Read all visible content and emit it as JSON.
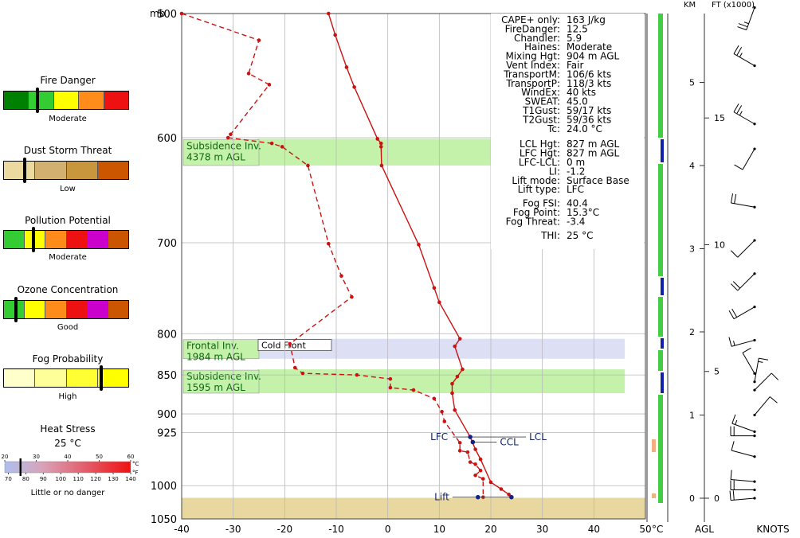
{
  "legend": {
    "fire": {
      "title": "Fire Danger",
      "level": "Moderate",
      "colors": [
        "#008000",
        "#33cc33",
        "#ffff00",
        "#ff8c1a",
        "#ee1111"
      ],
      "marker_fraction": 0.27
    },
    "dust": {
      "title": "Dust Storm Threat",
      "level": "Low",
      "colors": [
        "#ecd9a0",
        "#d2b070",
        "#c8963c",
        "#cc5500"
      ],
      "marker_fraction": 0.17
    },
    "pollution": {
      "title": "Pollution Potential",
      "level": "Moderate",
      "colors": [
        "#33cc33",
        "#ffff00",
        "#ff8c1a",
        "#ee1111",
        "#cc00cc",
        "#cc5500"
      ],
      "marker_fraction": 0.24
    },
    "ozone": {
      "title": "Ozone Concentration",
      "level": "Good",
      "colors": [
        "#33cc33",
        "#ffff00",
        "#ff8c1a",
        "#ee1111",
        "#cc00cc",
        "#cc5500"
      ],
      "marker_fraction": 0.1
    },
    "fog": {
      "title": "Fog Probability",
      "level": "High",
      "colors": [
        "#ffffcc",
        "#ffff99",
        "#ffff33",
        "#ffff00"
      ],
      "marker_fraction": 0.78
    },
    "heat": {
      "title": "Heat Stress",
      "value": "25 °C",
      "danger": "Little or no danger",
      "c_ticks": [
        "20",
        "30",
        "40",
        "50",
        "60"
      ],
      "c_unit": "°C",
      "f_ticks": [
        "70",
        "80",
        "90",
        "100",
        "110",
        "120",
        "130",
        "140"
      ],
      "f_unit": "°F",
      "marker_c": 25
    }
  },
  "chart_data": {
    "type": "line",
    "pressure_label": "mb",
    "temp_unit_label": "°C",
    "agl_label": "AGL",
    "knots_label": "KNOTS",
    "km_label": "KM",
    "ft_label": "FT (x1000)",
    "x_ticks": [
      -40,
      -30,
      -20,
      -10,
      0,
      10,
      20,
      30,
      40,
      50
    ],
    "xlim": [
      -40,
      50
    ],
    "y_ticks": [
      500,
      600,
      700,
      800,
      850,
      900,
      925,
      1000,
      1050
    ],
    "ylim": [
      500,
      1050
    ],
    "series": [
      {
        "color": "#cc1111",
        "style": "solid",
        "points": [
          [
            -11.5,
            500
          ],
          [
            -10.2,
            516
          ],
          [
            -8,
            541
          ],
          [
            -6.5,
            557
          ],
          [
            -2,
            601
          ],
          [
            -1.3,
            605
          ],
          [
            -1.3,
            608
          ],
          [
            -1.2,
            625
          ],
          [
            6,
            702
          ],
          [
            9,
            748
          ],
          [
            10,
            764
          ],
          [
            14,
            806
          ],
          [
            13,
            815
          ],
          [
            14.5,
            843
          ],
          [
            13.5,
            852
          ],
          [
            12.5,
            861
          ],
          [
            12.5,
            873
          ],
          [
            13,
            895
          ],
          [
            16,
            931
          ],
          [
            17,
            948
          ],
          [
            18,
            962
          ],
          [
            20,
            995
          ],
          [
            22,
            1005
          ],
          [
            23.5,
            1013
          ],
          [
            24,
            1017
          ]
        ]
      },
      {
        "color": "#cc1111",
        "style": "dashed",
        "points": [
          [
            -40,
            500
          ],
          [
            -25,
            520
          ],
          [
            -27,
            546
          ],
          [
            -23,
            555
          ],
          [
            -30.5,
            597
          ],
          [
            -31,
            600
          ],
          [
            -22.5,
            605
          ],
          [
            -20.5,
            608
          ],
          [
            -15.5,
            625
          ],
          [
            -11.5,
            701
          ],
          [
            -9,
            735
          ],
          [
            -7,
            758
          ],
          [
            -19,
            812
          ],
          [
            -18,
            841
          ],
          [
            -16.5,
            848
          ],
          [
            -6,
            850
          ],
          [
            0.5,
            855
          ],
          [
            0.5,
            866
          ],
          [
            5,
            869
          ],
          [
            9,
            880
          ],
          [
            10.5,
            897
          ],
          [
            11,
            910
          ],
          [
            14,
            939
          ],
          [
            14,
            950
          ],
          [
            15.5,
            952
          ],
          [
            16,
            966
          ],
          [
            17,
            969
          ],
          [
            18,
            978
          ],
          [
            17,
            985
          ],
          [
            18.5,
            990
          ],
          [
            18.5,
            1017
          ]
        ]
      }
    ],
    "parcel_points": [
      {
        "label": "LFC",
        "t": 16,
        "p": 931
      },
      {
        "label": "LCL",
        "t": 16,
        "p": 931
      },
      {
        "label": "CCL",
        "t": 16.5,
        "p": 938
      },
      {
        "label": "Lift",
        "t": 17.5,
        "p": 1017
      }
    ],
    "layers": [
      {
        "type": "subsidence",
        "name": "Subsidence Inv.",
        "height": "4378 m AGL",
        "p_top": 601,
        "p_bottom": 625,
        "t_right": 20,
        "color": "#c4f2aa"
      },
      {
        "type": "frontal",
        "name": "Frontal Inv.",
        "height": "1984 m AGL",
        "p_top": 806,
        "p_bottom": 830,
        "t_right": 46,
        "color": "#dde0f5"
      },
      {
        "type": "subsidence",
        "name": "Subsidence Inv.",
        "height": "1595 m AGL",
        "p_top": 843,
        "p_bottom": 873,
        "t_right": 46,
        "color": "#c4f2aa"
      }
    ],
    "front_label": "Cold Front",
    "ground": {
      "p_top": 1018,
      "color": "#e8d8a0"
    },
    "indices": [
      {
        "label": "CAPE+ only:",
        "value": "163 J/kg"
      },
      {
        "label": "FireDanger:",
        "value": "12.5"
      },
      {
        "label": "Chandler:",
        "value": "5.9"
      },
      {
        "label": "Haines:",
        "value": "Moderate"
      },
      {
        "label": "Mixing Hgt:",
        "value": "904 m AGL"
      },
      {
        "label": "Vent Index:",
        "value": "Fair"
      },
      {
        "label": "TransportM:",
        "value": "106/6 kts"
      },
      {
        "label": "TransportP:",
        "value": "118/3 kts"
      },
      {
        "label": "WindEx:",
        "value": "40 kts"
      },
      {
        "label": "SWEAT:",
        "value": "45.0"
      },
      {
        "label": "T1Gust:",
        "value": "59/17 kts"
      },
      {
        "label": "T2Gust:",
        "value": "59/36 kts"
      },
      {
        "label": "Tc:",
        "value": "24.0 °C"
      },
      {
        "label": "LCL Hgt:",
        "value": "827 m AGL"
      },
      {
        "label": "LFC Hgt:",
        "value": "827 m AGL"
      },
      {
        "label": "LFC-LCL:",
        "value": "0 m"
      },
      {
        "label": "LI:",
        "value": "-1.2"
      },
      {
        "label": "Lift mode:",
        "value": "Surface Base"
      },
      {
        "label": "Lift type:",
        "value": "LFC"
      },
      {
        "label": "Fog FSI:",
        "value": "40.4"
      },
      {
        "label": "Fog Point:",
        "value": "15.3°C"
      },
      {
        "label": "Fog Threat:",
        "value": "-3.4"
      },
      {
        "label": "THI:",
        "value": "25 °C"
      }
    ],
    "km_ticks": [
      "0",
      "1",
      "2",
      "3",
      "4",
      "5"
    ],
    "ft_ticks": [
      "0",
      "5",
      "10",
      "15"
    ],
    "wind_barbs": [
      {
        "height_km": 5.9,
        "dir_deg": 200,
        "speed_kt": 25
      },
      {
        "height_km": 5.2,
        "dir_deg": 300,
        "speed_kt": 25
      },
      {
        "height_km": 4.5,
        "dir_deg": 300,
        "speed_kt": 25
      },
      {
        "height_km": 4.2,
        "dir_deg": 210,
        "speed_kt": 10
      },
      {
        "height_km": 3.5,
        "dir_deg": 280,
        "speed_kt": 20
      },
      {
        "height_km": 3.1,
        "dir_deg": 225,
        "speed_kt": 10
      },
      {
        "height_km": 2.7,
        "dir_deg": 225,
        "speed_kt": 20
      },
      {
        "height_km": 2.3,
        "dir_deg": 240,
        "speed_kt": 20
      },
      {
        "height_km": 1.9,
        "dir_deg": 255,
        "speed_kt": 15
      },
      {
        "height_km": 1.5,
        "dir_deg": 330,
        "speed_kt": 10
      },
      {
        "height_km": 1.4,
        "dir_deg": 10,
        "speed_kt": 15
      },
      {
        "height_km": 1.3,
        "dir_deg": 45,
        "speed_kt": 10
      },
      {
        "height_km": 1.0,
        "dir_deg": 40,
        "speed_kt": 10
      },
      {
        "height_km": 0.8,
        "dir_deg": 290,
        "speed_kt": 15
      },
      {
        "height_km": 0.75,
        "dir_deg": 270,
        "speed_kt": 20
      },
      {
        "height_km": 0.5,
        "dir_deg": 285,
        "speed_kt": 10
      },
      {
        "height_km": 0.2,
        "dir_deg": 275,
        "speed_kt": 10
      },
      {
        "height_km": 0.1,
        "dir_deg": 270,
        "speed_kt": 20
      },
      {
        "height_km": 0.0,
        "dir_deg": 265,
        "speed_kt": 20
      }
    ]
  }
}
